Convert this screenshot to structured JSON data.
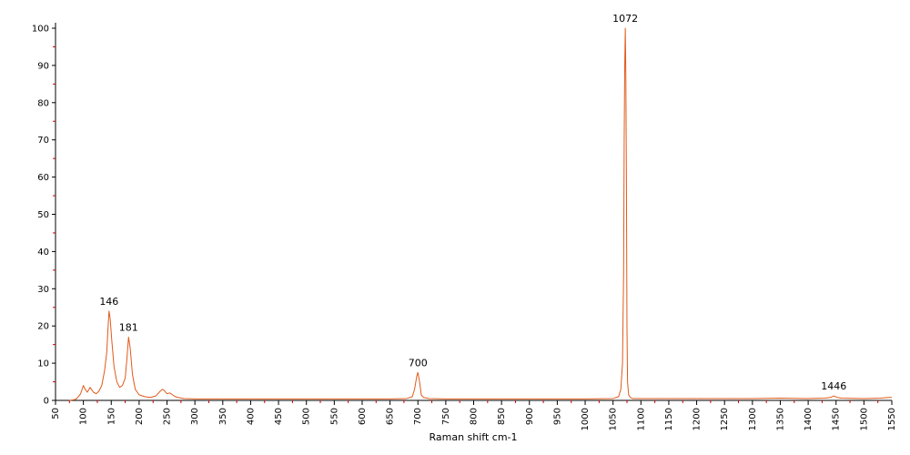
{
  "chart_data": {
    "type": "line",
    "title": "",
    "xlabel": "Raman shift cm-1",
    "ylabel": "",
    "xlim": [
      50,
      1550
    ],
    "ylim": [
      0,
      100
    ],
    "grid": false,
    "line_color": "#e05a1a",
    "x_ticks": [
      "50",
      "100",
      "150",
      "200",
      "250",
      "300",
      "350",
      "400",
      "450",
      "500",
      "550",
      "600",
      "650",
      "700",
      "750",
      "800",
      "850",
      "900",
      "950",
      "1000",
      "1050",
      "1100",
      "1150",
      "1200",
      "1250",
      "1300",
      "1350",
      "1400",
      "1450",
      "1500",
      "1550"
    ],
    "y_ticks": [
      "0",
      "10",
      "20",
      "30",
      "40",
      "50",
      "60",
      "70",
      "80",
      "90",
      "100"
    ],
    "peak_labels": [
      {
        "text": "146",
        "x": 146,
        "y": 24
      },
      {
        "text": "181",
        "x": 181,
        "y": 17
      },
      {
        "text": "700",
        "x": 700,
        "y": 7.5
      },
      {
        "text": "1072",
        "x": 1072,
        "y": 100
      },
      {
        "text": "1446",
        "x": 1446,
        "y": 1.2
      }
    ],
    "series": [
      {
        "x": [
          75,
          85,
          90,
          95,
          100,
          103,
          107,
          112,
          118,
          123,
          128,
          133,
          138,
          142,
          144,
          146,
          148,
          151,
          155,
          160,
          165,
          170,
          175,
          178,
          181,
          184,
          188,
          193,
          200,
          210,
          220,
          230,
          238,
          242,
          246,
          250,
          255,
          260,
          265,
          270,
          280,
          300,
          350,
          400,
          450,
          500,
          550,
          600,
          650,
          680,
          690,
          694,
          698,
          700,
          703,
          706,
          710,
          720,
          750,
          800,
          900,
          1000,
          1050,
          1060,
          1064,
          1067,
          1069,
          1070,
          1071,
          1072,
          1073,
          1074,
          1075,
          1076,
          1078,
          1081,
          1085,
          1100,
          1150,
          1200,
          1250,
          1300,
          1350,
          1400,
          1430,
          1440,
          1446,
          1452,
          1460,
          1500,
          1530,
          1545,
          1550
        ],
        "y": [
          0,
          0.2,
          0.8,
          1.8,
          4,
          3,
          2.2,
          3.5,
          2.2,
          1.8,
          2.5,
          4,
          8,
          13,
          19,
          24,
          22,
          16,
          9,
          5,
          3.5,
          4,
          6,
          11,
          17,
          14,
          7,
          3,
          1.5,
          1,
          0.8,
          1.2,
          2.5,
          3,
          2.5,
          1.8,
          2,
          1.5,
          1,
          0.8,
          0.5,
          0.4,
          0.4,
          0.4,
          0.4,
          0.4,
          0.4,
          0.4,
          0.4,
          0.5,
          1,
          3,
          6.5,
          7.5,
          5,
          1.5,
          0.8,
          0.5,
          0.4,
          0.4,
          0.4,
          0.4,
          0.5,
          1,
          3,
          10,
          35,
          70,
          90,
          100,
          87,
          60,
          20,
          5,
          1.5,
          0.8,
          0.5,
          0.5,
          0.5,
          0.5,
          0.5,
          0.5,
          0.6,
          0.5,
          0.6,
          0.8,
          1.2,
          0.8,
          0.6,
          0.5,
          0.6,
          0.8,
          0.8
        ]
      }
    ]
  }
}
